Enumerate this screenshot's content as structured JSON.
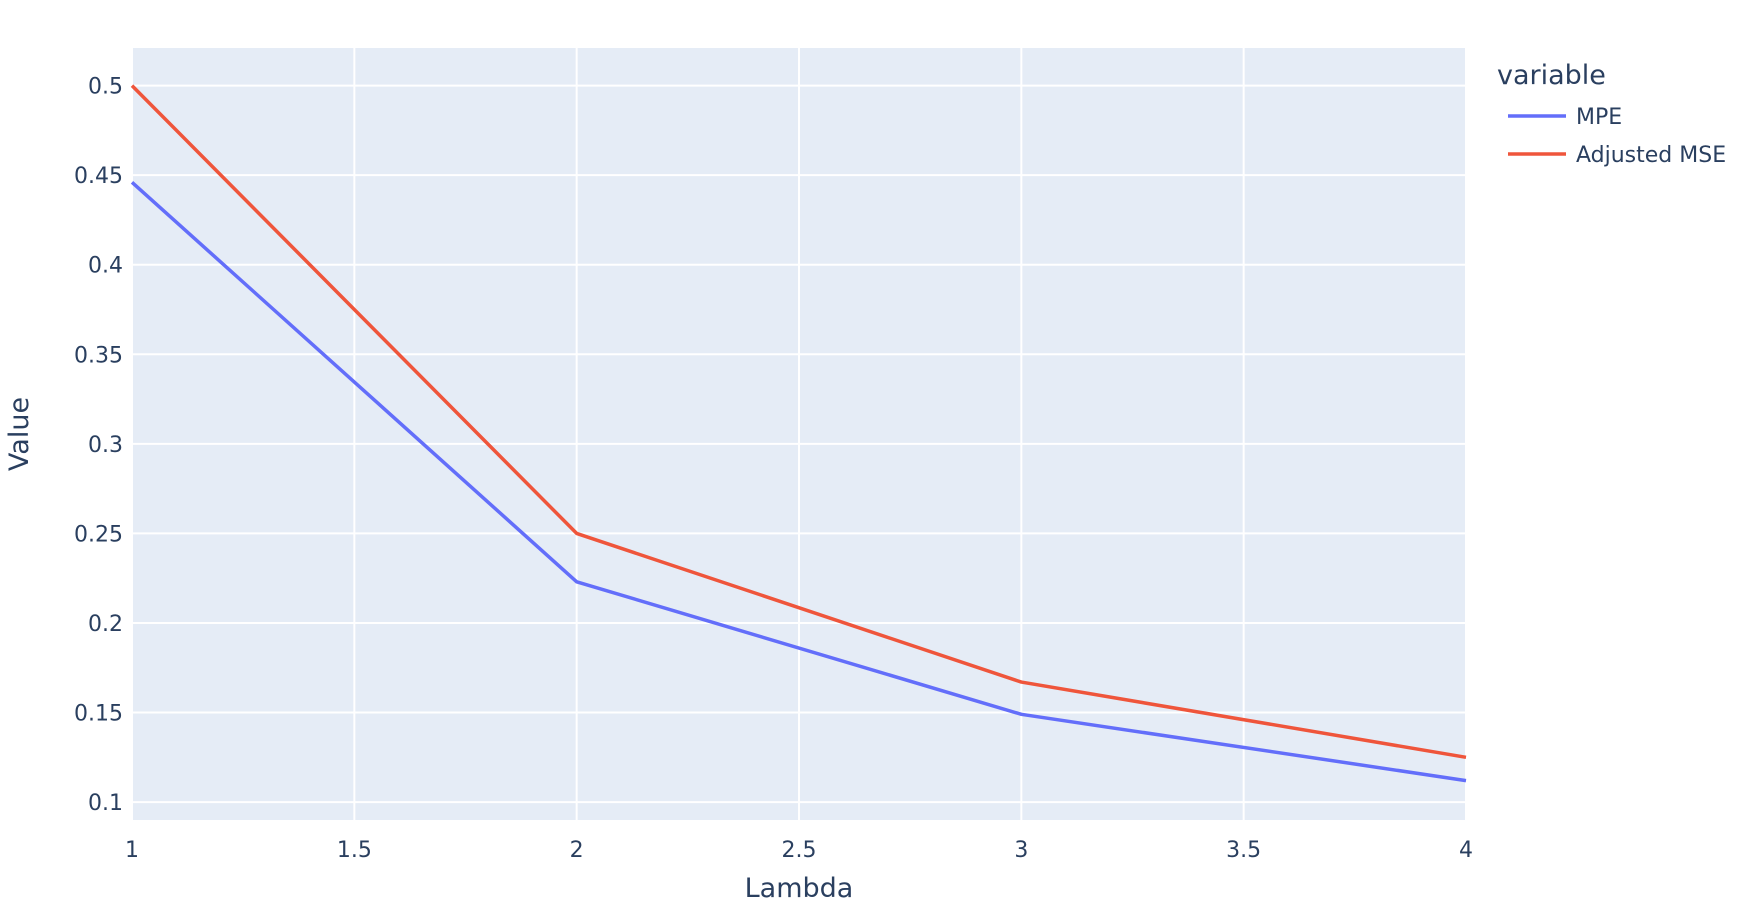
{
  "chart_data": {
    "type": "line",
    "xlabel": "Lambda",
    "ylabel": "Value",
    "x": [
      1,
      2,
      3,
      4
    ],
    "xlim": [
      1,
      4
    ],
    "ylim": [
      0.09,
      0.521
    ],
    "xticks": [
      1,
      1.5,
      2,
      2.5,
      3,
      3.5,
      4
    ],
    "xtick_labels": [
      "1",
      "1.5",
      "2",
      "2.5",
      "3",
      "3.5",
      "4"
    ],
    "yticks": [
      0.1,
      0.15,
      0.2,
      0.25,
      0.3,
      0.35,
      0.4,
      0.45,
      0.5
    ],
    "ytick_labels": [
      "0.1",
      "0.15",
      "0.2",
      "0.25",
      "0.3",
      "0.35",
      "0.4",
      "0.45",
      "0.5"
    ],
    "grid": true,
    "legend": {
      "title": "variable",
      "placement": "top-right outside"
    },
    "series": [
      {
        "name": "MPE",
        "color": "#636efa",
        "values": [
          0.446,
          0.223,
          0.149,
          0.112
        ]
      },
      {
        "name": "Adjusted MSE",
        "color": "#ef553b",
        "values": [
          0.5,
          0.25,
          0.167,
          0.125
        ]
      }
    ],
    "colors": {
      "plot_bg": "#e5ecf6",
      "grid": "#ffffff",
      "text": "#2a3f5f"
    }
  }
}
